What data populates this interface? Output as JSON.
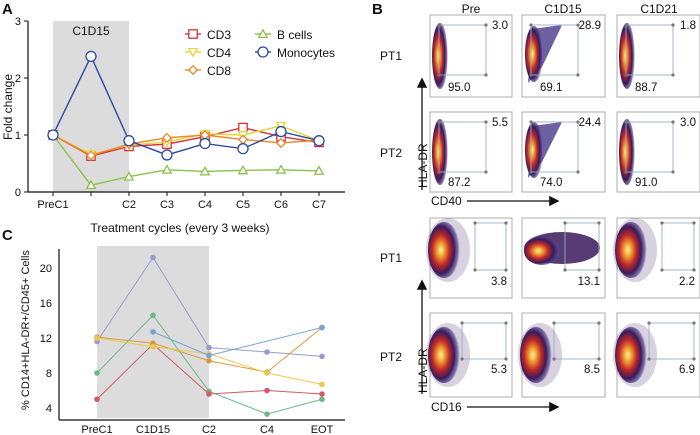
{
  "panel_labels": {
    "a": "A",
    "b": "B",
    "c": "C"
  },
  "chart_data": [
    {
      "type": "line",
      "panel": "A",
      "categories": [
        "PreC1",
        "",
        "C2",
        "C3",
        "C4",
        "C5",
        "C6",
        "C7"
      ],
      "shaded_region_label": "C1D15",
      "ylabel": "Fold change",
      "xlabel": "Treatment cycles (every 3 weeks)",
      "ylim": [
        0,
        3
      ],
      "yticks": [
        "0",
        "1",
        "2",
        "3"
      ],
      "legend_position": "top-right",
      "series": [
        {
          "name": "CD3",
          "color": "#d9303a",
          "marker": "square",
          "values": [
            1.0,
            0.63,
            0.8,
            0.84,
            0.97,
            1.13,
            0.97,
            0.87
          ]
        },
        {
          "name": "CD4",
          "color": "#e6d43a",
          "marker": "triangle-down",
          "values": [
            1.0,
            0.66,
            0.82,
            0.88,
            1.02,
            1.0,
            1.16,
            0.9
          ]
        },
        {
          "name": "CD8",
          "color": "#e8872a",
          "marker": "diamond",
          "values": [
            1.0,
            0.64,
            0.84,
            0.95,
            1.0,
            0.92,
            0.86,
            0.91
          ]
        },
        {
          "name": "B cells",
          "color": "#8cc04a",
          "marker": "triangle-up",
          "values": [
            1.0,
            0.12,
            0.27,
            0.39,
            0.36,
            0.38,
            0.39,
            0.37
          ]
        },
        {
          "name": "Monocytes",
          "color": "#2b4aa5",
          "marker": "circle",
          "values": [
            1.0,
            2.38,
            0.9,
            0.65,
            0.85,
            0.76,
            1.06,
            0.9
          ]
        }
      ]
    },
    {
      "type": "line",
      "panel": "C",
      "categories": [
        "PreC1",
        "C1D15",
        "C2",
        "C4",
        "EOT"
      ],
      "ylabel": "% CD14+HLA-DR+/CD45+ Cells",
      "yticks": [
        "4",
        "8",
        "12",
        "16",
        "20"
      ],
      "ylim": [
        2.6,
        22.5
      ],
      "series": [
        {
          "color": "#9a9ad0",
          "values": [
            11.6,
            21.2,
            10.9,
            10.4,
            9.9
          ]
        },
        {
          "color": "#6cb98a",
          "values": [
            8.0,
            14.6,
            5.9,
            3.3,
            5.0
          ]
        },
        {
          "color": "#d05a66",
          "values": [
            5.0,
            11.3,
            5.6,
            6.0,
            5.6
          ]
        },
        {
          "color": "#d99a3a",
          "values": [
            12.1,
            11.4,
            9.4,
            8.1,
            13.2
          ]
        },
        {
          "color": "#ecc84a",
          "values": [
            12.0,
            11.0,
            10.2,
            8.0,
            6.7
          ]
        },
        {
          "color": "#7aa2d6",
          "values": [
            null,
            12.7,
            10.0,
            null,
            13.2
          ]
        }
      ]
    }
  ],
  "panel_b": {
    "columns": [
      "Pre",
      "C1D15",
      "C1D21"
    ],
    "rows": [
      "PT1",
      "PT2",
      "PT1",
      "PT2"
    ],
    "yaxis_label": "HLA-DR",
    "cd40_xlabel": "CD40",
    "cd16_xlabel": "CD16",
    "cd40": [
      [
        {
          "upper": "3.0",
          "lower": "95.0"
        },
        {
          "upper": "28.9",
          "lower": "69.1"
        },
        {
          "upper": "1.8",
          "lower": "88.7"
        }
      ],
      [
        {
          "upper": "5.5",
          "lower": "87.2"
        },
        {
          "upper": "24.4",
          "lower": "74.0"
        },
        {
          "upper": "3.0",
          "lower": "91.0"
        }
      ]
    ],
    "cd16": [
      [
        "3.8",
        "13.1",
        "2.2"
      ],
      [
        "5.3",
        "8.5",
        "6.9"
      ]
    ]
  }
}
